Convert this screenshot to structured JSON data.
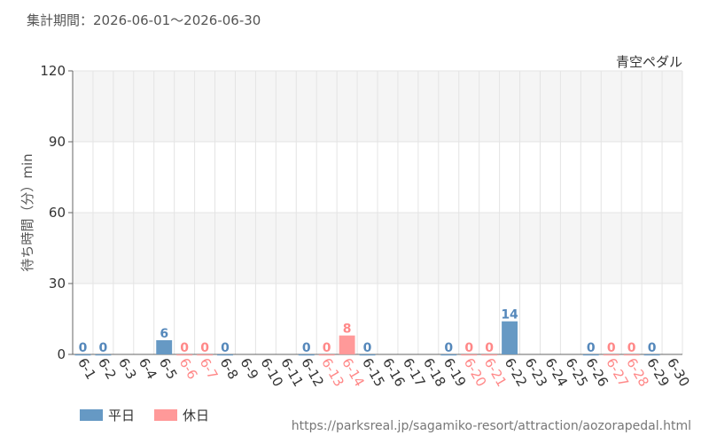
{
  "header": {
    "period_label": "集計期間：2026-06-01～2026-06-30"
  },
  "footer": {
    "url": "https://parksreal.jp/sagamiko-resort/attraction/aozorapedal.html"
  },
  "legend": [
    {
      "label": "平日",
      "color": "#6699c4"
    },
    {
      "label": "休日",
      "color": "#ff9999"
    }
  ],
  "colors": {
    "weekday": "#6699c4",
    "holiday": "#ff9999",
    "weekday_label": "#5588bb",
    "holiday_label": "#ff8888",
    "axis_text": "#333333"
  },
  "chart_data": {
    "type": "bar",
    "attraction": "青空ペダル",
    "ylabel": "待ち時間（分）min",
    "xlabel": "",
    "ylim": [
      0,
      120
    ],
    "yticks": [
      0,
      30,
      60,
      90,
      120
    ],
    "grid": true,
    "categories": [
      "6-1",
      "6-2",
      "6-3",
      "6-4",
      "6-5",
      "6-6",
      "6-7",
      "6-8",
      "6-9",
      "6-10",
      "6-11",
      "6-12",
      "6-13",
      "6-14",
      "6-15",
      "6-16",
      "6-17",
      "6-18",
      "6-19",
      "6-20",
      "6-21",
      "6-22",
      "6-23",
      "6-24",
      "6-25",
      "6-26",
      "6-27",
      "6-28",
      "6-29",
      "6-30"
    ],
    "values": [
      0,
      0,
      null,
      null,
      6,
      0,
      0,
      0,
      null,
      null,
      null,
      0,
      0,
      8,
      0,
      null,
      null,
      null,
      0,
      0,
      0,
      14,
      null,
      null,
      null,
      0,
      0,
      0,
      0,
      null
    ],
    "holiday": [
      false,
      false,
      false,
      false,
      false,
      true,
      true,
      false,
      false,
      false,
      false,
      false,
      true,
      true,
      false,
      false,
      false,
      false,
      false,
      true,
      true,
      false,
      false,
      false,
      false,
      false,
      true,
      true,
      false,
      false
    ]
  }
}
